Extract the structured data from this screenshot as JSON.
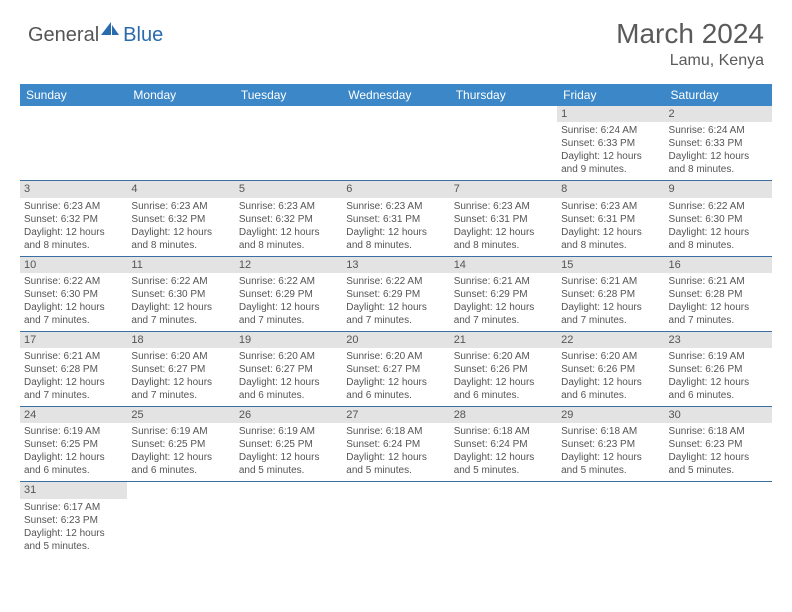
{
  "logo": {
    "part1": "General",
    "part2": "Blue"
  },
  "title": "March 2024",
  "location": "Lamu, Kenya",
  "colors": {
    "header_bg": "#3b87c8",
    "header_fg": "#ffffff",
    "daynum_bg": "#e3e3e3",
    "row_border": "#3b6fa3",
    "text": "#555555",
    "logo_accent": "#2a6bad"
  },
  "typography": {
    "title_fontsize": 28,
    "location_fontsize": 16,
    "header_fontsize": 12,
    "cell_fontsize": 10
  },
  "day_headers": [
    "Sunday",
    "Monday",
    "Tuesday",
    "Wednesday",
    "Thursday",
    "Friday",
    "Saturday"
  ],
  "weeks": [
    [
      null,
      null,
      null,
      null,
      null,
      {
        "n": "1",
        "sr": "Sunrise: 6:24 AM",
        "ss": "Sunset: 6:33 PM",
        "dl": "Daylight: 12 hours and 9 minutes."
      },
      {
        "n": "2",
        "sr": "Sunrise: 6:24 AM",
        "ss": "Sunset: 6:33 PM",
        "dl": "Daylight: 12 hours and 8 minutes."
      }
    ],
    [
      {
        "n": "3",
        "sr": "Sunrise: 6:23 AM",
        "ss": "Sunset: 6:32 PM",
        "dl": "Daylight: 12 hours and 8 minutes."
      },
      {
        "n": "4",
        "sr": "Sunrise: 6:23 AM",
        "ss": "Sunset: 6:32 PM",
        "dl": "Daylight: 12 hours and 8 minutes."
      },
      {
        "n": "5",
        "sr": "Sunrise: 6:23 AM",
        "ss": "Sunset: 6:32 PM",
        "dl": "Daylight: 12 hours and 8 minutes."
      },
      {
        "n": "6",
        "sr": "Sunrise: 6:23 AM",
        "ss": "Sunset: 6:31 PM",
        "dl": "Daylight: 12 hours and 8 minutes."
      },
      {
        "n": "7",
        "sr": "Sunrise: 6:23 AM",
        "ss": "Sunset: 6:31 PM",
        "dl": "Daylight: 12 hours and 8 minutes."
      },
      {
        "n": "8",
        "sr": "Sunrise: 6:23 AM",
        "ss": "Sunset: 6:31 PM",
        "dl": "Daylight: 12 hours and 8 minutes."
      },
      {
        "n": "9",
        "sr": "Sunrise: 6:22 AM",
        "ss": "Sunset: 6:30 PM",
        "dl": "Daylight: 12 hours and 8 minutes."
      }
    ],
    [
      {
        "n": "10",
        "sr": "Sunrise: 6:22 AM",
        "ss": "Sunset: 6:30 PM",
        "dl": "Daylight: 12 hours and 7 minutes."
      },
      {
        "n": "11",
        "sr": "Sunrise: 6:22 AM",
        "ss": "Sunset: 6:30 PM",
        "dl": "Daylight: 12 hours and 7 minutes."
      },
      {
        "n": "12",
        "sr": "Sunrise: 6:22 AM",
        "ss": "Sunset: 6:29 PM",
        "dl": "Daylight: 12 hours and 7 minutes."
      },
      {
        "n": "13",
        "sr": "Sunrise: 6:22 AM",
        "ss": "Sunset: 6:29 PM",
        "dl": "Daylight: 12 hours and 7 minutes."
      },
      {
        "n": "14",
        "sr": "Sunrise: 6:21 AM",
        "ss": "Sunset: 6:29 PM",
        "dl": "Daylight: 12 hours and 7 minutes."
      },
      {
        "n": "15",
        "sr": "Sunrise: 6:21 AM",
        "ss": "Sunset: 6:28 PM",
        "dl": "Daylight: 12 hours and 7 minutes."
      },
      {
        "n": "16",
        "sr": "Sunrise: 6:21 AM",
        "ss": "Sunset: 6:28 PM",
        "dl": "Daylight: 12 hours and 7 minutes."
      }
    ],
    [
      {
        "n": "17",
        "sr": "Sunrise: 6:21 AM",
        "ss": "Sunset: 6:28 PM",
        "dl": "Daylight: 12 hours and 7 minutes."
      },
      {
        "n": "18",
        "sr": "Sunrise: 6:20 AM",
        "ss": "Sunset: 6:27 PM",
        "dl": "Daylight: 12 hours and 7 minutes."
      },
      {
        "n": "19",
        "sr": "Sunrise: 6:20 AM",
        "ss": "Sunset: 6:27 PM",
        "dl": "Daylight: 12 hours and 6 minutes."
      },
      {
        "n": "20",
        "sr": "Sunrise: 6:20 AM",
        "ss": "Sunset: 6:27 PM",
        "dl": "Daylight: 12 hours and 6 minutes."
      },
      {
        "n": "21",
        "sr": "Sunrise: 6:20 AM",
        "ss": "Sunset: 6:26 PM",
        "dl": "Daylight: 12 hours and 6 minutes."
      },
      {
        "n": "22",
        "sr": "Sunrise: 6:20 AM",
        "ss": "Sunset: 6:26 PM",
        "dl": "Daylight: 12 hours and 6 minutes."
      },
      {
        "n": "23",
        "sr": "Sunrise: 6:19 AM",
        "ss": "Sunset: 6:26 PM",
        "dl": "Daylight: 12 hours and 6 minutes."
      }
    ],
    [
      {
        "n": "24",
        "sr": "Sunrise: 6:19 AM",
        "ss": "Sunset: 6:25 PM",
        "dl": "Daylight: 12 hours and 6 minutes."
      },
      {
        "n": "25",
        "sr": "Sunrise: 6:19 AM",
        "ss": "Sunset: 6:25 PM",
        "dl": "Daylight: 12 hours and 6 minutes."
      },
      {
        "n": "26",
        "sr": "Sunrise: 6:19 AM",
        "ss": "Sunset: 6:25 PM",
        "dl": "Daylight: 12 hours and 5 minutes."
      },
      {
        "n": "27",
        "sr": "Sunrise: 6:18 AM",
        "ss": "Sunset: 6:24 PM",
        "dl": "Daylight: 12 hours and 5 minutes."
      },
      {
        "n": "28",
        "sr": "Sunrise: 6:18 AM",
        "ss": "Sunset: 6:24 PM",
        "dl": "Daylight: 12 hours and 5 minutes."
      },
      {
        "n": "29",
        "sr": "Sunrise: 6:18 AM",
        "ss": "Sunset: 6:23 PM",
        "dl": "Daylight: 12 hours and 5 minutes."
      },
      {
        "n": "30",
        "sr": "Sunrise: 6:18 AM",
        "ss": "Sunset: 6:23 PM",
        "dl": "Daylight: 12 hours and 5 minutes."
      }
    ],
    [
      {
        "n": "31",
        "sr": "Sunrise: 6:17 AM",
        "ss": "Sunset: 6:23 PM",
        "dl": "Daylight: 12 hours and 5 minutes."
      },
      null,
      null,
      null,
      null,
      null,
      null
    ]
  ]
}
